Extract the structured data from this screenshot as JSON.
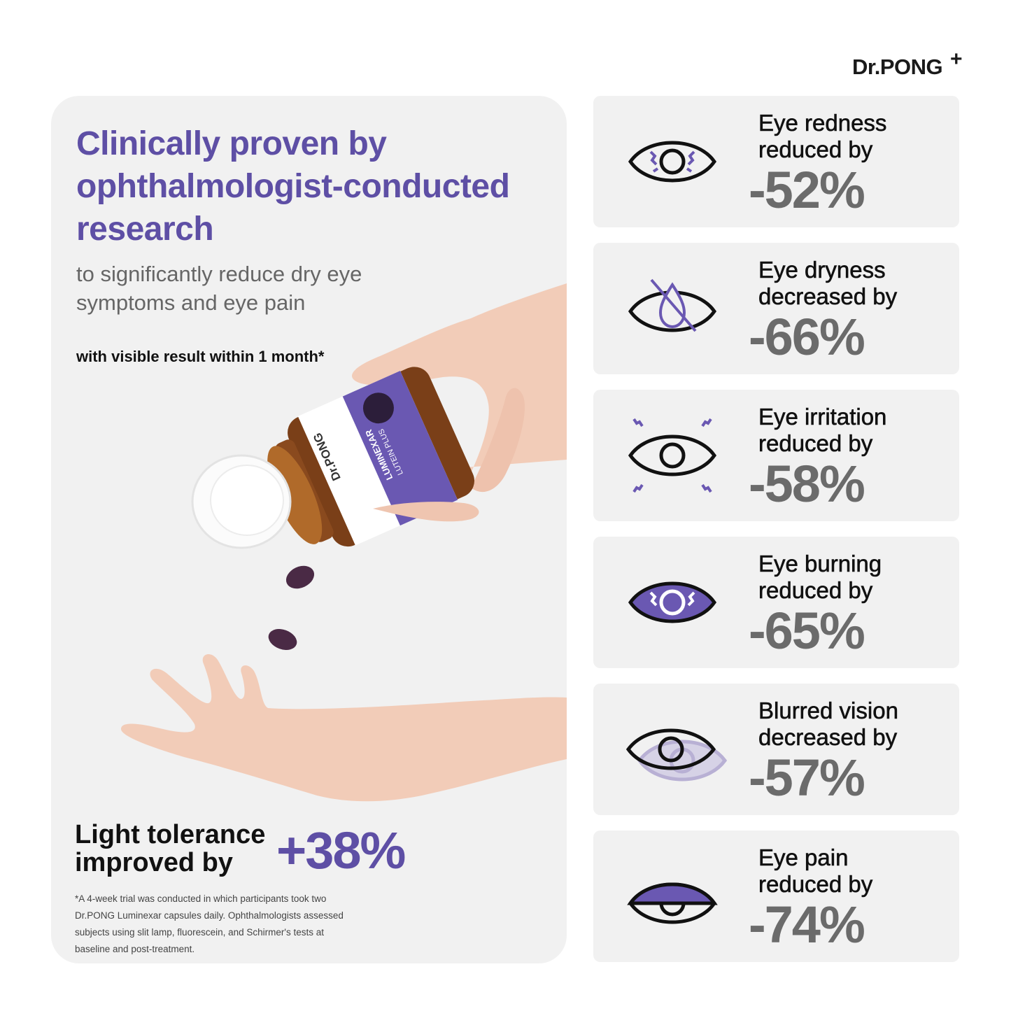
{
  "brand": {
    "name": "Dr.PONG",
    "plus": "+"
  },
  "hero": {
    "headline": "Clinically proven by ophthalmologist-conducted research",
    "subheadline": "to significantly reduce dry eye symptoms and eye pain",
    "note": "with visible result within 1 month*",
    "bottle_label_brand": "Dr.PONG",
    "bottle_label_product": "LUMINEXAR",
    "bottle_label_sub": "LUTEIN PLUS"
  },
  "highlight": {
    "label": "Light tolerance improved by",
    "value": "+38%"
  },
  "footnote": "*A 4-week trial was conducted in which participants took two Dr.PONG Luminexar capsules daily. Ophthalmologists assessed subjects using slit lamp, fluorescein, and Schirmer's tests at baseline and post-treatment.",
  "colors": {
    "accent": "#5e4fa5",
    "card_bg": "#f1f1f1",
    "value_gray": "#6b6b6b"
  },
  "stats": [
    {
      "label": "Eye redness reduced by",
      "value": "-52%",
      "icon": "eye-redness-icon"
    },
    {
      "label": "Eye dryness decreased by",
      "value": "-66%",
      "icon": "eye-dryness-icon"
    },
    {
      "label": "Eye irritation reduced by",
      "value": "-58%",
      "icon": "eye-irritation-icon"
    },
    {
      "label": "Eye burning reduced by",
      "value": "-65%",
      "icon": "eye-burning-icon"
    },
    {
      "label": "Blurred vision decreased by",
      "value": "-57%",
      "icon": "blurred-vision-icon"
    },
    {
      "label": "Eye pain reduced by",
      "value": "-74%",
      "icon": "eye-pain-icon"
    }
  ]
}
